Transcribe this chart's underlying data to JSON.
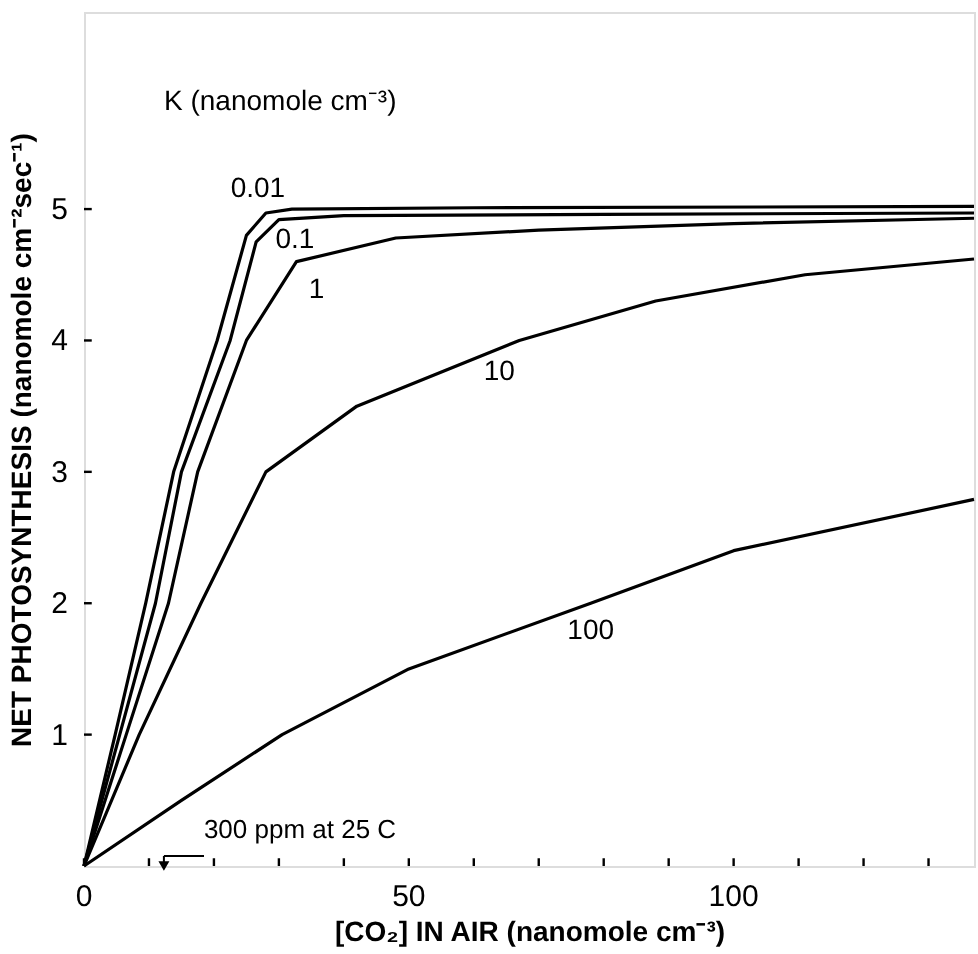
{
  "chart_data": {
    "type": "line",
    "legend_title": "K (nanomole cm⁻³)",
    "xlabel": "[CO₂] IN AIR (nanomole cm⁻³)",
    "ylabel": "NET PHOTOSYNTHESIS (nanomole cm⁻²sec⁻¹)",
    "xlim": [
      0,
      137
    ],
    "ylim": [
      0,
      6.5
    ],
    "xticks": [
      0,
      {
        "value": 10,
        "label": null
      },
      {
        "value": 20,
        "label": null
      },
      {
        "value": 30,
        "label": null
      },
      {
        "value": 40,
        "label": null
      },
      50,
      {
        "value": 60,
        "label": null
      },
      {
        "value": 70,
        "label": null
      },
      {
        "value": 80,
        "label": null
      },
      {
        "value": 90,
        "label": null
      },
      100,
      {
        "value": 110,
        "label": null
      },
      {
        "value": 120,
        "label": null
      },
      {
        "value": 130,
        "label": null
      }
    ],
    "yticks": [
      1,
      2,
      3,
      4,
      5
    ],
    "grid": false,
    "legend": false,
    "marker": "none",
    "line_style": "solid",
    "series": [
      {
        "name": "0.01",
        "color": "#000000",
        "x": [
          0,
          4.8,
          9.5,
          13.8,
          20.5,
          25,
          28,
          32,
          60,
          137
        ],
        "values": [
          0,
          1,
          2,
          3,
          4,
          4.8,
          4.97,
          5.0,
          5.01,
          5.02
        ]
      },
      {
        "name": "0.1",
        "color": "#000000",
        "x": [
          0,
          5.5,
          11,
          15,
          22.5,
          26.5,
          30,
          40,
          80,
          137
        ],
        "values": [
          0,
          1,
          2,
          3,
          4,
          4.75,
          4.92,
          4.95,
          4.96,
          4.97
        ]
      },
      {
        "name": "1",
        "color": "#000000",
        "x": [
          0,
          6.5,
          13,
          17.5,
          25,
          32.7,
          48,
          70,
          100,
          137
        ],
        "values": [
          0,
          1,
          2,
          3,
          4,
          4.6,
          4.78,
          4.84,
          4.89,
          4.93
        ]
      },
      {
        "name": "10",
        "color": "#000000",
        "x": [
          0,
          8.5,
          18,
          28,
          42,
          67,
          88,
          111,
          137
        ],
        "values": [
          0,
          1,
          2,
          3,
          3.5,
          4,
          4.3,
          4.5,
          4.62
        ]
      },
      {
        "name": "100",
        "color": "#000000",
        "x": [
          0,
          15,
          30.5,
          50,
          78,
          100,
          137
        ],
        "values": [
          0,
          0.5,
          1,
          1.5,
          2,
          2.4,
          2.79
        ]
      }
    ],
    "annotations": [
      {
        "text": "300 ppm at 25 C",
        "x": 12.3,
        "y": 0
      }
    ]
  }
}
